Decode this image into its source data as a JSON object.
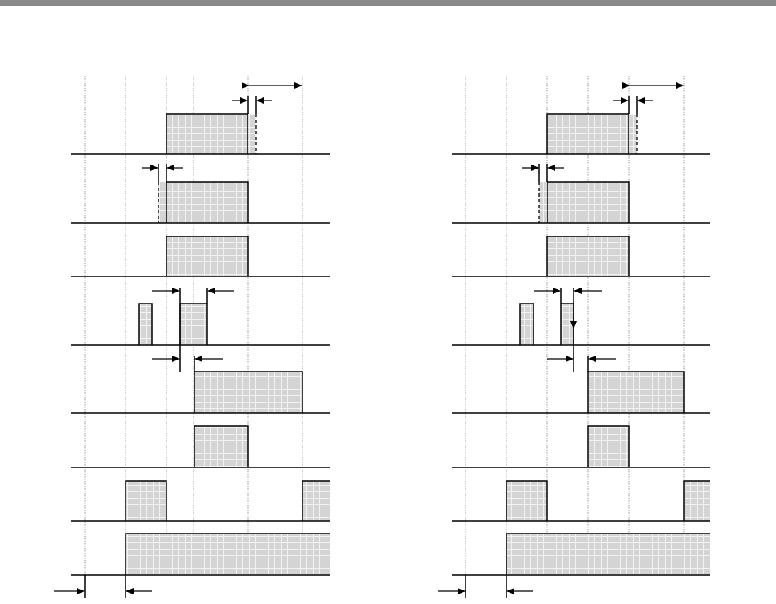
{
  "colors": {
    "top_bar": "#8a8a8a",
    "pulse_fill": "#d4d4d4",
    "pulse_grid": "#f2f2f2",
    "line": "#000000",
    "gridline": "#9a9a9a"
  },
  "panels": [
    {
      "name": "timing-diagram-left"
    },
    {
      "name": "timing-diagram-right"
    }
  ]
}
